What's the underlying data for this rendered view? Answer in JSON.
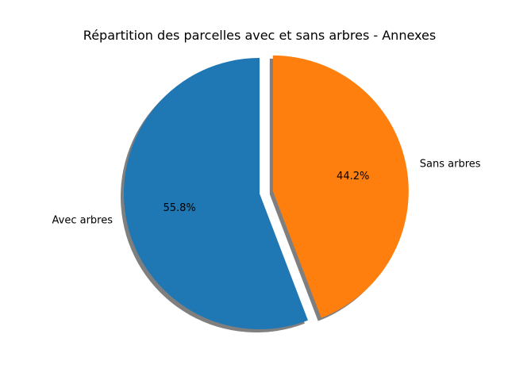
{
  "chart_data": {
    "type": "pie",
    "title": "Répartition des parcelles avec et sans arbres - Annexes",
    "slices": [
      {
        "label": "Avec arbres",
        "value": 55.8,
        "pct_label": "55.8%",
        "color": "#1f77b4",
        "exploded": false
      },
      {
        "label": "Sans arbres",
        "value": 44.2,
        "pct_label": "44.2%",
        "color": "#ff7f0e",
        "exploded": true
      }
    ],
    "start_angle_deg": 90,
    "direction": "counterclockwise",
    "shadow": true
  }
}
